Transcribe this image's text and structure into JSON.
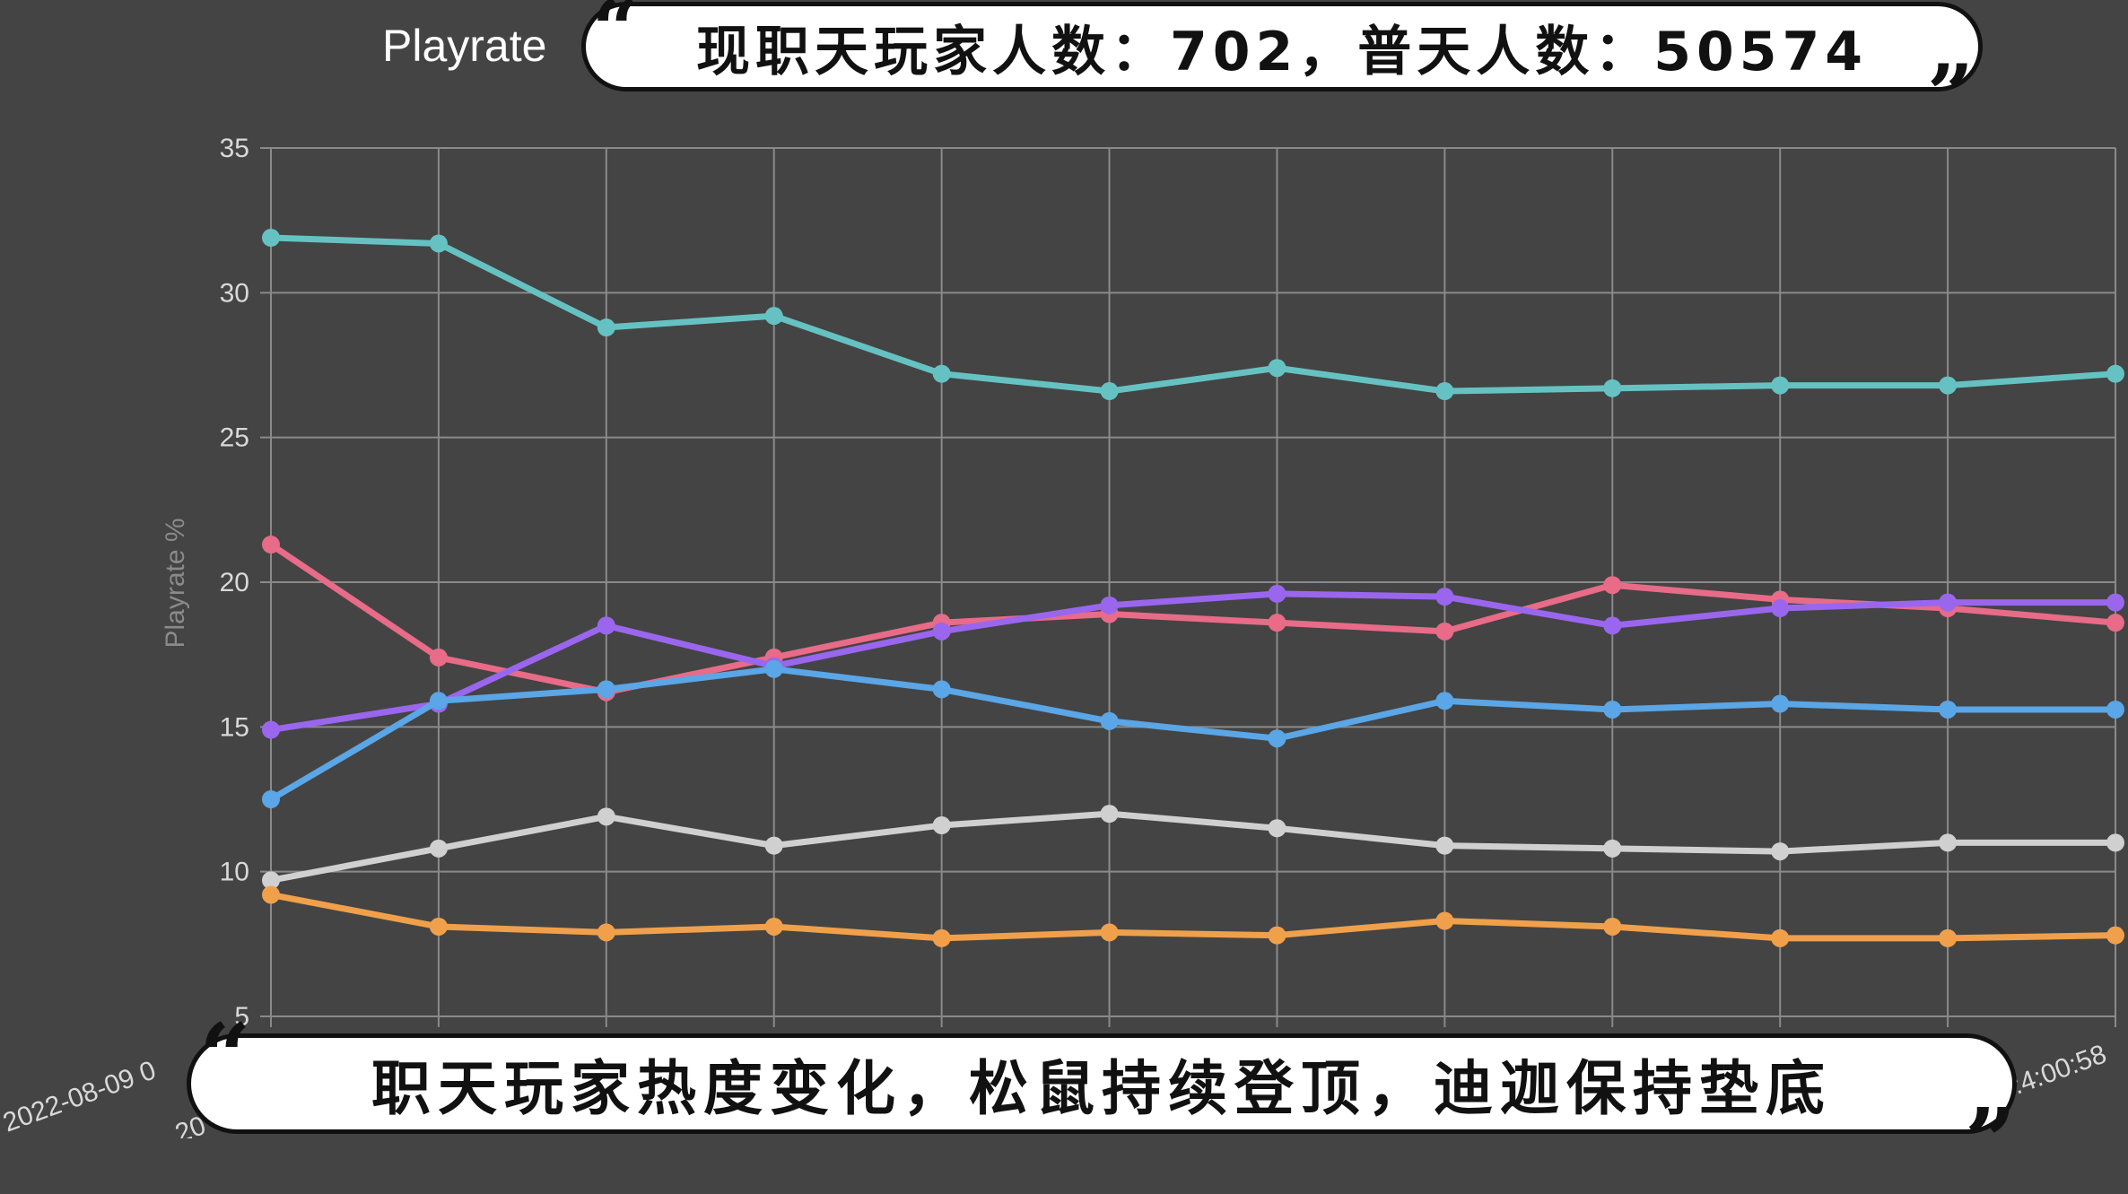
{
  "chart_data": {
    "type": "line",
    "title": "Playrate",
    "ylabel": "Playrate %",
    "ylim": [
      5,
      35
    ],
    "yticks": [
      "35",
      "30",
      "25",
      "20",
      "15",
      "10",
      "5"
    ],
    "x_tick_labels": [
      "2022-08-09 0",
      "20",
      ":4:00:58"
    ],
    "grid": true,
    "series": [
      {
        "color": "#66c2c2",
        "values": [
          31.9,
          31.7,
          28.8,
          29.2,
          27.2,
          26.6,
          27.4,
          26.6,
          26.7,
          26.8,
          26.8,
          27.2
        ]
      },
      {
        "color": "#e86b88",
        "values": [
          21.3,
          17.4,
          16.2,
          17.4,
          18.6,
          18.9,
          18.6,
          18.3,
          19.9,
          19.4,
          19.1,
          18.6
        ]
      },
      {
        "color": "#9a66ee",
        "values": [
          14.9,
          15.8,
          18.5,
          17.1,
          18.3,
          19.2,
          19.6,
          19.5,
          18.5,
          19.1,
          19.3,
          19.3
        ]
      },
      {
        "color": "#5aa6e6",
        "values": [
          12.5,
          15.9,
          16.3,
          17.0,
          16.3,
          15.2,
          14.6,
          15.9,
          15.6,
          15.8,
          15.6,
          15.6
        ]
      },
      {
        "color": "#d0d0d0",
        "values": [
          9.7,
          10.8,
          11.9,
          10.9,
          11.6,
          12.0,
          11.5,
          10.9,
          10.8,
          10.7,
          11.0,
          11.0
        ]
      },
      {
        "color": "#f0a04b",
        "values": [
          9.2,
          8.1,
          7.9,
          8.1,
          7.7,
          7.9,
          7.8,
          8.3,
          8.1,
          7.7,
          7.7,
          7.8
        ]
      }
    ]
  },
  "captions": {
    "top": "现职天玩家人数：702，普天人数：50574",
    "bottom": "职天玩家热度变化，松鼠持续登顶，迪迦保持垫底"
  },
  "quote_open": "“",
  "quote_close": "”",
  "colors": {
    "background": "#444444",
    "grid": "#8a8a8a",
    "caption_background": "#ffffff",
    "caption_text": "#111111"
  }
}
